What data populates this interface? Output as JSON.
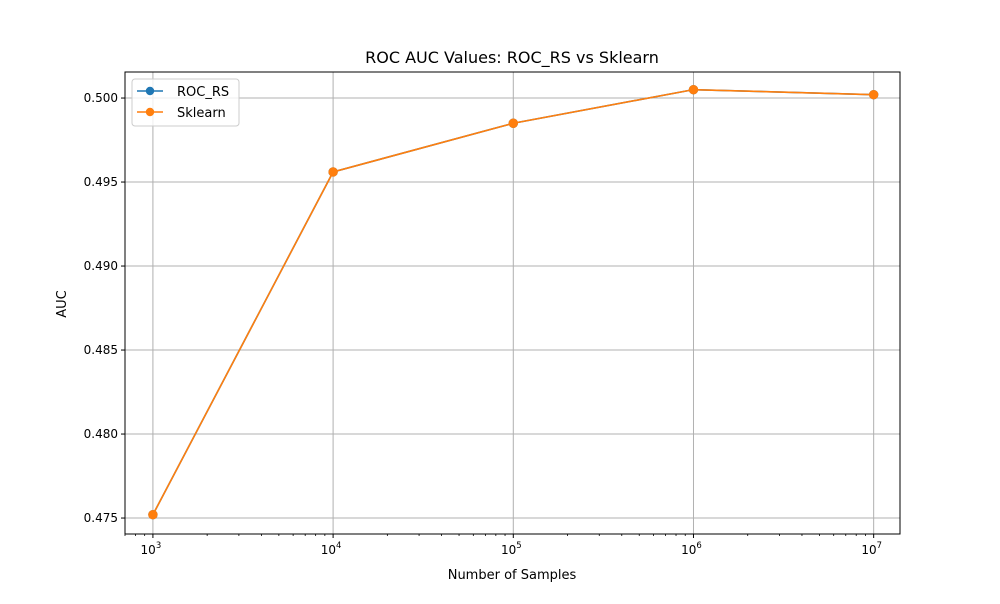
{
  "chart_data": {
    "type": "line",
    "title": "ROC AUC Values: ROC_RS vs Sklearn",
    "xlabel": "Number of Samples",
    "ylabel": "AUC",
    "xscale": "log",
    "xlim": [
      700,
      14000000
    ],
    "ylim": [
      0.47405,
      0.50155
    ],
    "x": [
      1000,
      10000,
      100000,
      1000000,
      10000000
    ],
    "x_tick_labels": [
      {
        "base": "10",
        "exp": "3"
      },
      {
        "base": "10",
        "exp": "4"
      },
      {
        "base": "10",
        "exp": "5"
      },
      {
        "base": "10",
        "exp": "6"
      },
      {
        "base": "10",
        "exp": "7"
      }
    ],
    "y_ticks": [
      0.475,
      0.48,
      0.485,
      0.49,
      0.495,
      0.5
    ],
    "y_tick_labels": [
      "0.475",
      "0.480",
      "0.485",
      "0.490",
      "0.495",
      "0.500"
    ],
    "grid": true,
    "legend_position": "upper-left",
    "series": [
      {
        "name": "ROC_RS",
        "color": "#1f77b4",
        "marker": "circle",
        "values": [
          0.4752,
          0.4956,
          0.4985,
          0.5005,
          0.5002
        ]
      },
      {
        "name": "Sklearn",
        "color": "#ff7f0e",
        "marker": "circle",
        "values": [
          0.4752,
          0.4956,
          0.4985,
          0.5005,
          0.5002
        ]
      }
    ]
  }
}
